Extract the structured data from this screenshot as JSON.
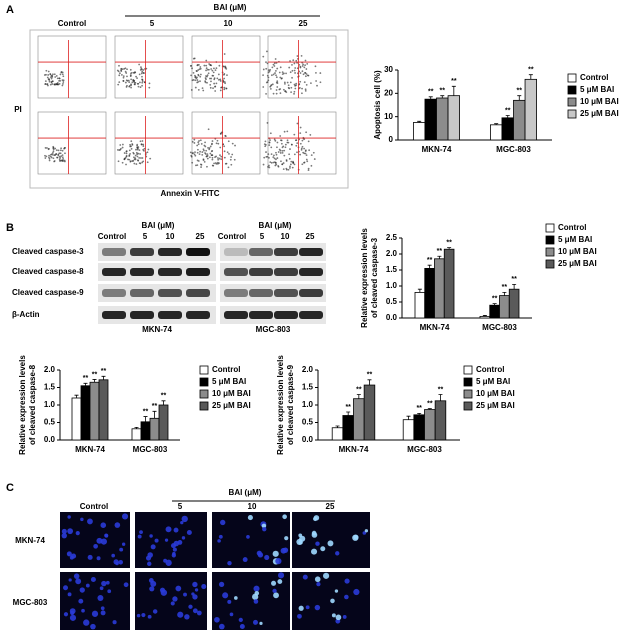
{
  "panel_a": {
    "label": "A",
    "control": "Control",
    "treatment": "BAI (μM)",
    "doses": [
      "5",
      "10",
      "25"
    ],
    "y_label": "PI",
    "x_label": "Annexin V-FITC"
  },
  "panel_b": {
    "label": "B",
    "treatment": "BAI (μM)",
    "lanes": [
      "Control",
      "5",
      "10",
      "25"
    ],
    "proteins": [
      "Cleaved caspase-3",
      "Cleaved caspase-8",
      "Cleaved caspase-9",
      "β-Actin"
    ],
    "cell_lines": [
      "MKN-74",
      "MGC-803"
    ]
  },
  "panel_c": {
    "label": "C",
    "control": "Control",
    "treatment": "BAI (μM)",
    "doses": [
      "5",
      "10",
      "25"
    ],
    "cell_lines": [
      "MKN-74",
      "MGC-803"
    ]
  },
  "chart_data": [
    {
      "type": "bar",
      "y_label": [
        "Apoptosis cell (%)"
      ],
      "categories": [
        "MKN-74",
        "MGC-803"
      ],
      "series": [
        {
          "name": "Control",
          "color": "#ffffff",
          "values": [
            7.5,
            6.5
          ],
          "errors": [
            0.5,
            0.5
          ]
        },
        {
          "name": "5 μM BAI",
          "color": "#000000",
          "values": [
            17.5,
            9.5
          ],
          "errors": [
            1,
            1
          ],
          "significance": [
            "**",
            "**"
          ]
        },
        {
          "name": "10 μM BAI",
          "color": "#8c8c8c",
          "values": [
            18,
            17
          ],
          "errors": [
            1,
            2
          ],
          "significance": [
            "**",
            "**"
          ]
        },
        {
          "name": "25 μM BAI",
          "color": "#c8c8c8",
          "values": [
            19,
            26
          ],
          "errors": [
            4,
            2
          ],
          "significance": [
            "**",
            "**"
          ]
        }
      ],
      "ylim": [
        0,
        30
      ],
      "yticks": [
        0,
        10,
        20,
        30
      ],
      "legend": "right"
    },
    {
      "type": "bar",
      "y_label": [
        "Relative expression levels",
        "of cleaved caspase-3"
      ],
      "categories": [
        "MKN-74",
        "MGC-803"
      ],
      "series": [
        {
          "name": "Control",
          "color": "#ffffff",
          "values": [
            0.8,
            0.05
          ],
          "errors": [
            0.1,
            0.03
          ]
        },
        {
          "name": "5 μM BAI",
          "color": "#000000",
          "values": [
            1.55,
            0.4
          ],
          "errors": [
            0.1,
            0.05
          ],
          "significance": [
            "**",
            "**"
          ]
        },
        {
          "name": "10 μM BAI",
          "color": "#8c8c8c",
          "values": [
            1.85,
            0.7
          ],
          "errors": [
            0.08,
            0.1
          ],
          "significance": [
            "**",
            "**"
          ]
        },
        {
          "name": "25 μM BAI",
          "color": "#5a5a5a",
          "values": [
            2.15,
            0.9
          ],
          "errors": [
            0.05,
            0.15
          ],
          "significance": [
            "**",
            "**"
          ]
        }
      ],
      "ylim": [
        0,
        2.5
      ],
      "yticks": [
        {
          "value": 0,
          "label": "0.0"
        },
        0.5,
        {
          "value": 1,
          "label": "1.0"
        },
        1.5,
        {
          "value": 2,
          "label": "2.0"
        },
        2.5
      ],
      "legend": "right"
    },
    {
      "type": "bar",
      "y_label": [
        "Relative expression levels",
        "of cleaved caspase-8"
      ],
      "categories": [
        "MKN-74",
        "MGC-803"
      ],
      "series": [
        {
          "name": "Control",
          "color": "#ffffff",
          "values": [
            1.2,
            0.32
          ],
          "errors": [
            0.08,
            0.04
          ]
        },
        {
          "name": "5 μM BAI",
          "color": "#000000",
          "values": [
            1.55,
            0.52
          ],
          "errors": [
            0.07,
            0.15
          ],
          "significance": [
            "**",
            "**"
          ]
        },
        {
          "name": "10 μM BAI",
          "color": "#8c8c8c",
          "values": [
            1.65,
            0.62
          ],
          "errors": [
            0.08,
            0.2
          ],
          "significance": [
            "**",
            "**"
          ]
        },
        {
          "name": "25 μM BAI",
          "color": "#5a5a5a",
          "values": [
            1.72,
            1.0
          ],
          "errors": [
            0.1,
            0.12
          ],
          "significance": [
            "**",
            "**"
          ]
        }
      ],
      "ylim": [
        0,
        2
      ],
      "yticks": [
        {
          "value": 0,
          "label": "0.0"
        },
        0.5,
        {
          "value": 1,
          "label": "1.0"
        },
        1.5,
        {
          "value": 2,
          "label": "2.0"
        }
      ],
      "legend": "right"
    },
    {
      "type": "bar",
      "y_label": [
        "Relative expression levels",
        "of cleaved caspase-9"
      ],
      "categories": [
        "MKN-74",
        "MGC-803"
      ],
      "series": [
        {
          "name": "Control",
          "color": "#ffffff",
          "values": [
            0.35,
            0.58
          ],
          "errors": [
            0.05,
            0.1
          ]
        },
        {
          "name": "5 μM BAI",
          "color": "#000000",
          "values": [
            0.7,
            0.72
          ],
          "errors": [
            0.1,
            0.04
          ],
          "significance": [
            "**",
            "**"
          ]
        },
        {
          "name": "10 μM BAI",
          "color": "#8c8c8c",
          "values": [
            1.18,
            0.87
          ],
          "errors": [
            0.12,
            0.03
          ],
          "significance": [
            "**",
            "**"
          ]
        },
        {
          "name": "25 μM BAI",
          "color": "#5a5a5a",
          "values": [
            1.57,
            1.12
          ],
          "errors": [
            0.15,
            0.18
          ],
          "significance": [
            "**",
            "**"
          ]
        }
      ],
      "ylim": [
        0,
        2
      ],
      "yticks": [
        {
          "value": 0,
          "label": "0.0"
        },
        0.5,
        {
          "value": 1,
          "label": "1.0"
        },
        1.5,
        {
          "value": 2,
          "label": "2.0"
        }
      ],
      "legend": "right"
    }
  ]
}
